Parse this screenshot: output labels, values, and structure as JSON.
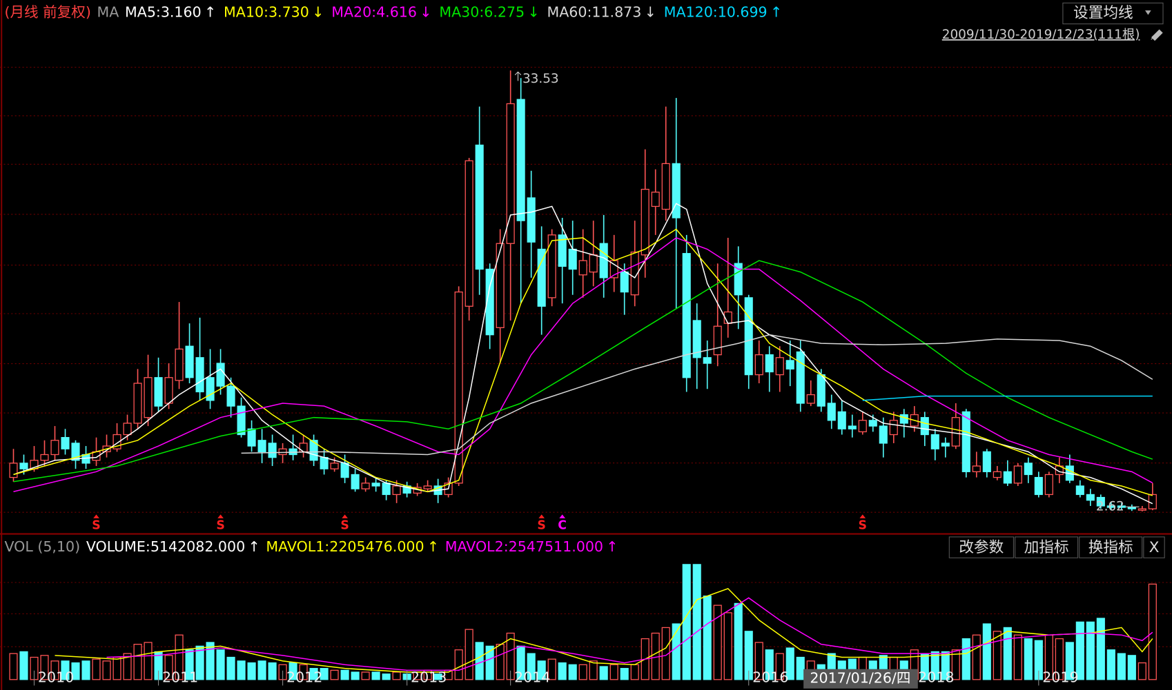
{
  "header": {
    "adjust": "(月线 前复权)",
    "ma": "MA"
  },
  "top_right": {
    "button": "设置均线",
    "range": "2009/11/30-2019/12/23(111根)"
  },
  "chart_data": [
    {
      "type": "candlestick",
      "ylim": [
        1.3,
        36.9
      ],
      "up_color": "#ff5555",
      "down_color": "#54fcfc",
      "candles": {
        "open": [
          5.0,
          6.0,
          5.6,
          6.2,
          6.6,
          7.8,
          7.4,
          6.6,
          6.2,
          6.8,
          7.0,
          8.0,
          8.8,
          9.2,
          12.0,
          10.2,
          11.8,
          14.2,
          13.4,
          12.0,
          13.0,
          11.4,
          10.0,
          8.4,
          7.6,
          7.4,
          6.6,
          7.0,
          6.8,
          7.6,
          6.4,
          5.6,
          6.0,
          5.2,
          4.2,
          4.6,
          4.6,
          3.8,
          4.4,
          3.9,
          4.2,
          4.4,
          3.8,
          4.6,
          17.0,
          28.3,
          19.6,
          15.5,
          21.4,
          31.5,
          24.6,
          21.0,
          17.6,
          22.0,
          21.0,
          19.2,
          19.4,
          21.4,
          19.0,
          19.4,
          17.8,
          20.6,
          24.0,
          23.8,
          27.0,
          20.7,
          16.0,
          13.4,
          13.6,
          15.8,
          20.0,
          17.6,
          12.2,
          13.6,
          12.2,
          13.2,
          13.8,
          10.2,
          12.2,
          10.2,
          9.6,
          8.6,
          8.2,
          9.0,
          8.6,
          8.0,
          9.4,
          8.6,
          9.2,
          8.0,
          7.4,
          7.2,
          9.6,
          5.4,
          6.8,
          5.0,
          5.4,
          4.6,
          6.0,
          5.0,
          3.8,
          5.2,
          5.8,
          4.4,
          3.8,
          3.6,
          3.0,
          3.0,
          2.9,
          2.7,
          2.8
        ],
        "high": [
          7.0,
          6.6,
          7.2,
          7.6,
          8.6,
          8.4,
          7.6,
          7.2,
          7.8,
          8.0,
          8.8,
          9.4,
          12.6,
          13.6,
          13.4,
          13.0,
          17.3,
          15.8,
          16.2,
          14.0,
          14.0,
          12.0,
          10.6,
          9.0,
          8.4,
          8.0,
          7.4,
          8.0,
          8.0,
          8.0,
          7.0,
          6.4,
          6.6,
          5.6,
          5.0,
          5.0,
          4.8,
          4.8,
          4.7,
          4.6,
          4.8,
          4.9,
          5.0,
          18.4,
          27.4,
          31.0,
          20.0,
          22.4,
          33.53,
          33.0,
          26.5,
          22.6,
          22.4,
          23.2,
          23.0,
          22.4,
          23.0,
          23.4,
          22.0,
          20.0,
          23.0,
          28.0,
          26.6,
          31.0,
          31.6,
          22.0,
          17.2,
          14.6,
          20.0,
          21.8,
          21.2,
          17.8,
          14.6,
          14.2,
          14.2,
          14.6,
          14.6,
          11.8,
          12.6,
          10.8,
          10.4,
          9.4,
          9.6,
          9.4,
          9.2,
          9.6,
          9.8,
          10.0,
          9.6,
          8.4,
          7.8,
          10.2,
          9.8,
          6.8,
          7.0,
          5.8,
          6.2,
          6.0,
          6.4,
          5.4,
          5.4,
          6.4,
          6.6,
          4.8,
          4.2,
          3.8,
          3.3,
          3.2,
          3.1,
          3.0,
          4.6
        ],
        "low": [
          4.7,
          5.2,
          5.4,
          5.8,
          6.2,
          6.6,
          5.6,
          5.6,
          5.8,
          6.4,
          6.8,
          7.6,
          8.4,
          8.6,
          9.6,
          9.8,
          11.2,
          11.6,
          10.4,
          9.8,
          10.8,
          9.2,
          7.8,
          6.8,
          6.0,
          5.8,
          6.0,
          6.2,
          6.4,
          5.8,
          5.2,
          5.4,
          4.6,
          4.0,
          4.0,
          4.0,
          3.4,
          3.2,
          3.6,
          3.7,
          4.0,
          3.2,
          3.6,
          4.4,
          16.0,
          17.8,
          14.0,
          13.0,
          16.0,
          17.2,
          19.0,
          15.0,
          17.0,
          17.2,
          17.8,
          17.6,
          18.4,
          17.6,
          18.0,
          16.4,
          17.0,
          19.0,
          22.0,
          23.0,
          16.8,
          11.0,
          11.2,
          11.2,
          12.8,
          14.8,
          15.4,
          11.2,
          11.6,
          11.0,
          11.0,
          11.4,
          9.6,
          10.0,
          9.6,
          8.4,
          8.0,
          7.8,
          8.0,
          8.2,
          6.4,
          7.4,
          7.8,
          8.2,
          7.2,
          6.2,
          6.4,
          7.0,
          5.0,
          5.0,
          5.0,
          4.8,
          4.4,
          4.4,
          4.6,
          3.6,
          3.6,
          4.6,
          4.6,
          3.6,
          3.0,
          2.8,
          2.7,
          2.7,
          2.65,
          2.62,
          2.7
        ],
        "close": [
          6.0,
          5.6,
          6.2,
          6.6,
          7.6,
          7.0,
          6.2,
          6.0,
          6.8,
          7.2,
          8.0,
          8.8,
          11.6,
          12.0,
          10.0,
          12.0,
          14.0,
          12.0,
          11.0,
          10.4,
          11.4,
          10.0,
          8.0,
          7.2,
          6.8,
          6.4,
          7.0,
          6.6,
          7.4,
          6.2,
          5.6,
          6.0,
          5.0,
          4.2,
          4.6,
          4.4,
          3.8,
          4.4,
          3.9,
          4.3,
          4.4,
          3.8,
          4.6,
          18.0,
          27.2,
          19.6,
          15.0,
          21.4,
          31.2,
          23.0,
          21.5,
          17.0,
          22.0,
          19.8,
          19.6,
          20.2,
          20.6,
          19.0,
          20.2,
          18.0,
          20.8,
          25.2,
          25.0,
          27.0,
          23.2,
          12.0,
          13.4,
          13.0,
          15.6,
          16.6,
          17.8,
          12.2,
          13.6,
          12.4,
          13.4,
          12.6,
          10.2,
          10.8,
          10.0,
          9.0,
          8.4,
          8.4,
          9.0,
          8.6,
          7.4,
          9.0,
          8.8,
          9.4,
          8.0,
          7.0,
          7.2,
          9.2,
          5.4,
          5.8,
          5.4,
          5.4,
          4.6,
          5.8,
          5.2,
          3.8,
          5.2,
          5.8,
          4.8,
          3.8,
          3.4,
          3.0,
          2.9,
          2.9,
          2.8,
          2.8,
          3.8
        ]
      },
      "series": [
        {
          "name": "MA5:3.160",
          "arrow": "↑",
          "color": "#ffffff",
          "x": [
            0,
            4,
            8,
            12,
            16,
            20,
            24,
            28,
            32,
            36,
            40,
            42,
            44,
            46,
            48,
            50,
            52,
            54,
            57,
            60,
            62,
            64,
            65,
            67,
            69,
            71,
            73,
            76,
            80,
            84,
            88,
            92,
            95,
            98,
            101,
            104,
            107,
            110
          ],
          "values": [
            5.2,
            6.2,
            6.4,
            8.4,
            10.8,
            12.6,
            9.0,
            6.8,
            6.0,
            4.6,
            4.0,
            4.2,
            10.6,
            18.4,
            23.4,
            23.6,
            24.0,
            21.0,
            20.4,
            19.0,
            21.4,
            24.2,
            23.8,
            18.6,
            15.8,
            16.0,
            15.0,
            14.0,
            10.4,
            8.8,
            8.4,
            8.0,
            7.4,
            6.8,
            5.4,
            5.0,
            4.2,
            3.16
          ]
        },
        {
          "name": "MA10:3.730",
          "arrow": "↓",
          "color": "#ffff00",
          "x": [
            0,
            6,
            12,
            17,
            21,
            25,
            30,
            35,
            40,
            43,
            46,
            49,
            52,
            55,
            58,
            61,
            64,
            67,
            70,
            73,
            77,
            80,
            84,
            88,
            92,
            95,
            98,
            101,
            104,
            107,
            110
          ],
          "values": [
            5.2,
            6.4,
            7.6,
            10.0,
            11.6,
            9.4,
            7.0,
            5.0,
            4.0,
            4.8,
            11.0,
            17.2,
            21.6,
            21.8,
            20.2,
            21.0,
            22.4,
            19.8,
            17.2,
            14.4,
            12.6,
            11.4,
            9.6,
            8.8,
            8.2,
            7.4,
            6.6,
            5.8,
            4.8,
            4.4,
            3.73
          ]
        },
        {
          "name": "MA20:4.616",
          "arrow": "↓",
          "color": "#ff00ff",
          "x": [
            0,
            8,
            14,
            20,
            26,
            30,
            35,
            41,
            43,
            46,
            50,
            54,
            58,
            61,
            64,
            67,
            70,
            72,
            76,
            80,
            84,
            88,
            92,
            96,
            100,
            104,
            108,
            110
          ],
          "values": [
            4.0,
            5.4,
            7.2,
            9.2,
            10.2,
            10.0,
            8.6,
            6.8,
            6.6,
            8.4,
            13.6,
            17.2,
            19.2,
            20.2,
            21.8,
            21.0,
            19.6,
            19.6,
            17.4,
            15.0,
            12.6,
            10.8,
            9.2,
            7.6,
            6.6,
            6.0,
            5.4,
            4.616
          ]
        },
        {
          "name": "MA30:6.275",
          "arrow": "↓",
          "color": "#00e600",
          "x": [
            0,
            10,
            20,
            29,
            38,
            42,
            49,
            55,
            61,
            68,
            72,
            76,
            82,
            88,
            92,
            96,
            100,
            104,
            108,
            110
          ],
          "values": [
            4.7,
            5.8,
            7.9,
            9.2,
            8.9,
            8.4,
            10.2,
            12.8,
            15.5,
            18.6,
            20.2,
            19.4,
            17.3,
            14.4,
            12.3,
            10.6,
            9.2,
            8.0,
            6.8,
            6.275
          ]
        },
        {
          "name": "MA60:11.873",
          "arrow": "↓",
          "color": "#d8d8d8",
          "x": [
            22,
            30,
            40,
            43,
            46,
            50,
            55,
            60,
            65,
            70,
            73,
            78,
            84,
            90,
            95,
            101,
            104,
            107,
            110
          ],
          "values": [
            6.7,
            6.8,
            6.6,
            7.0,
            8.8,
            10.2,
            11.4,
            12.6,
            13.6,
            14.4,
            15.0,
            14.4,
            14.3,
            14.4,
            14.7,
            14.6,
            14.2,
            13.2,
            11.873
          ]
        },
        {
          "name": "MA120:10.699",
          "arrow": "↑",
          "color": "#00d8ff",
          "x": [
            82,
            86,
            88,
            110
          ],
          "values": [
            10.4,
            10.6,
            10.7,
            10.699
          ]
        }
      ],
      "high_mark": {
        "index": 48,
        "label": "33.53"
      },
      "low_mark": {
        "index": 109,
        "label": "2.62"
      },
      "signals": [
        {
          "index": 8,
          "label": "S",
          "color": "#ff2020"
        },
        {
          "index": 20,
          "label": "S",
          "color": "#ff2020"
        },
        {
          "index": 32,
          "label": "S",
          "color": "#ff2020"
        },
        {
          "index": 51,
          "label": "S",
          "color": "#ff2020"
        },
        {
          "index": 53,
          "label": "C",
          "color": "#ff00ff"
        },
        {
          "index": 82,
          "label": "S",
          "color": "#ff2020"
        }
      ]
    },
    {
      "type": "bar",
      "title": "VOL",
      "subtitle": "(5,10)",
      "ylim": [
        0,
        7000000
      ],
      "series": [
        {
          "name": "VOLUME:5142082.000",
          "arrow": "↑",
          "color": "#ffffff",
          "values": [
            1400000,
            1500000,
            1200000,
            1300000,
            1000000,
            1000000,
            900000,
            1000000,
            1100000,
            1000000,
            1200000,
            1400000,
            1900000,
            2000000,
            1500000,
            1300000,
            2400000,
            1600000,
            1800000,
            2000000,
            1600000,
            1200000,
            1000000,
            900000,
            1000000,
            900000,
            800000,
            900000,
            800000,
            600000,
            600000,
            500000,
            500000,
            400000,
            400000,
            400000,
            300000,
            400000,
            300000,
            400000,
            500000,
            300000,
            500000,
            1600000,
            2700000,
            2000000,
            1800000,
            1900000,
            2500000,
            1800000,
            1400000,
            1000000,
            1100000,
            900000,
            800000,
            800000,
            1000000,
            700000,
            800000,
            600000,
            800000,
            2200000,
            2500000,
            2800000,
            3000000,
            6200000,
            6200000,
            4500000,
            4000000,
            3600000,
            4100000,
            2600000,
            2000000,
            1600000,
            1400000,
            1700000,
            1200000,
            1000000,
            800000,
            1400000,
            1000000,
            1100000,
            1200000,
            1000000,
            1300000,
            1200000,
            1000000,
            1600000,
            1400000,
            1500000,
            1500000,
            1600000,
            2200000,
            2400000,
            3000000,
            2600000,
            2800000,
            2400000,
            2200000,
            2100000,
            2400000,
            2200000,
            2000000,
            3100000,
            3100000,
            3300000,
            1600000,
            1400000,
            1300000,
            900000,
            5142082
          ]
        },
        {
          "name": "MAVOL1:2205476.000",
          "arrow": "↑",
          "color": "#ffff00",
          "x": [
            4,
            10,
            14,
            20,
            26,
            32,
            38,
            42,
            45,
            48,
            52,
            56,
            60,
            63,
            66,
            69,
            72,
            76,
            80,
            86,
            92,
            96,
            100,
            104,
            107,
            109,
            110
          ],
          "values": [
            1300000,
            1100000,
            1500000,
            1800000,
            1000000,
            600000,
            400000,
            400000,
            1200000,
            2200000,
            1600000,
            900000,
            800000,
            1700000,
            4300000,
            4900000,
            3200000,
            1600000,
            1200000,
            1200000,
            1400000,
            2600000,
            2400000,
            2500000,
            2800000,
            1500000,
            2205476
          ]
        },
        {
          "name": "MAVOL2:2547511.000",
          "arrow": "↑",
          "color": "#ff00ff",
          "x": [
            9,
            14,
            20,
            26,
            32,
            38,
            43,
            46,
            49,
            54,
            59,
            63,
            67,
            71,
            74,
            78,
            84,
            90,
            96,
            100,
            104,
            107,
            109,
            110
          ],
          "values": [
            1200000,
            1300000,
            1700000,
            1300000,
            800000,
            500000,
            500000,
            1100000,
            1800000,
            1400000,
            900000,
            1300000,
            3000000,
            4400000,
            3200000,
            1900000,
            1400000,
            1400000,
            2200000,
            2400000,
            2500000,
            2400000,
            2100000,
            2547511
          ]
        }
      ],
      "x_labels": [
        {
          "index": 2,
          "label": "2010"
        },
        {
          "index": 14,
          "label": "2011"
        },
        {
          "index": 26,
          "label": "2012"
        },
        {
          "index": 38,
          "label": "2013"
        },
        {
          "index": 48,
          "label": "2014"
        },
        {
          "index": 71,
          "label": "2016"
        },
        {
          "index": 87,
          "label": "2018"
        },
        {
          "index": 99,
          "label": "2019"
        }
      ],
      "cursor_label": "2017/01/26/四",
      "buttons": [
        "改参数",
        "加指标",
        "换指标",
        "X"
      ]
    }
  ]
}
